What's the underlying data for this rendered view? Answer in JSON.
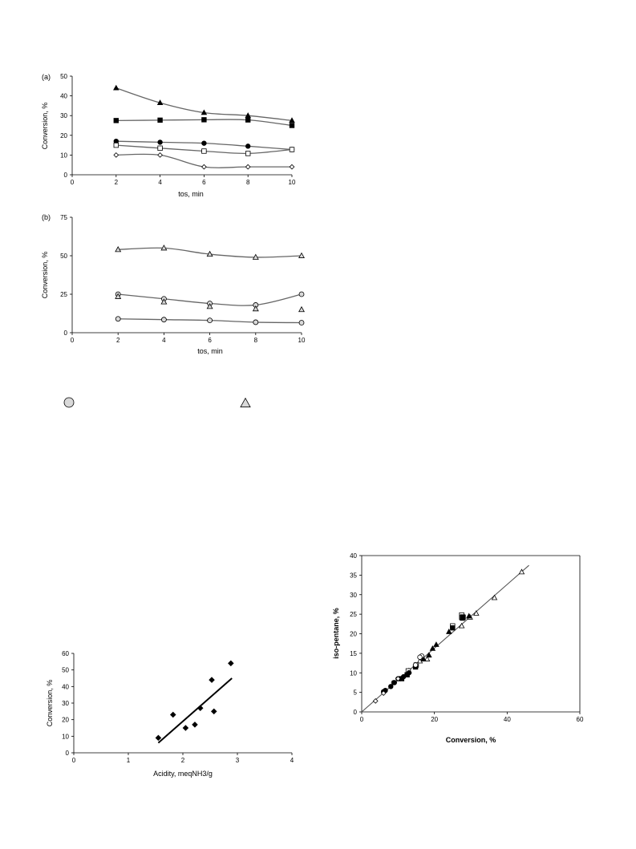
{
  "chart_data": [
    {
      "id": "a",
      "type": "line",
      "panel_label": "(a)",
      "xlabel": "tos, min",
      "ylabel": "Conversion, %",
      "xlim": [
        0,
        10
      ],
      "ylim": [
        0,
        50
      ],
      "x_ticks": [
        "0",
        "2",
        "4",
        "6",
        "8",
        "10"
      ],
      "y_ticks": [
        "0",
        "10",
        "20",
        "30",
        "40",
        "50"
      ],
      "series": [
        {
          "marker": "triangle",
          "fill": "#000000",
          "x": [
            2,
            4,
            6,
            8,
            10
          ],
          "values": [
            44,
            36.5,
            31.5,
            30,
            27.5
          ]
        },
        {
          "marker": "square",
          "fill": "#000000",
          "x": [
            2,
            4,
            6,
            8,
            10
          ],
          "values": [
            27.5,
            27.7,
            27.9,
            27.8,
            25
          ]
        },
        {
          "marker": "circle",
          "fill": "#000000",
          "x": [
            2,
            4,
            6,
            8,
            10
          ],
          "values": [
            17,
            16.5,
            16,
            14.5,
            12.8
          ]
        },
        {
          "marker": "square",
          "fill": "#ffffff",
          "x": [
            2,
            4,
            6,
            8,
            10
          ],
          "values": [
            15,
            13.5,
            12,
            10.8,
            12.8
          ]
        },
        {
          "marker": "diamond",
          "fill": "#ffffff",
          "x": [
            2,
            4,
            6,
            8,
            10
          ],
          "values": [
            10,
            10,
            4,
            4,
            4
          ]
        }
      ]
    },
    {
      "id": "b",
      "type": "line",
      "panel_label": "(b)",
      "xlabel": "tos, min",
      "ylabel": "Conversion, %",
      "xlim": [
        0,
        10
      ],
      "ylim": [
        0,
        75
      ],
      "x_ticks": [
        "0",
        "2",
        "4",
        "6",
        "8",
        "10"
      ],
      "y_ticks": [
        "0",
        "25",
        "50",
        "75"
      ],
      "series": [
        {
          "marker": "triangle",
          "fill": "#d9d9d9",
          "line": true,
          "x": [
            2,
            4,
            6,
            8,
            10
          ],
          "values": [
            54,
            55,
            51,
            49,
            50
          ]
        },
        {
          "marker": "circle",
          "fill": "#d9d9d9",
          "line": true,
          "x": [
            2,
            4,
            6,
            8,
            10
          ],
          "values": [
            25,
            22,
            19,
            18,
            25
          ]
        },
        {
          "marker": "triangle",
          "fill": "#d9d9d9",
          "line": false,
          "x": [
            2,
            4,
            6,
            8,
            10
          ],
          "values": [
            23.5,
            20,
            17,
            15.5,
            15
          ]
        },
        {
          "marker": "circle",
          "fill": "#d9d9d9",
          "line": true,
          "x": [
            2,
            4,
            6,
            8,
            10
          ],
          "values": [
            9,
            8.5,
            8,
            6.8,
            6.5
          ]
        }
      ]
    },
    {
      "id": "acidity",
      "type": "scatter",
      "xlabel": "Acidity, meqNH3/g",
      "ylabel": "Conversion, %",
      "xlim": [
        0,
        4
      ],
      "ylim": [
        0,
        60
      ],
      "x_ticks": [
        "0",
        "1",
        "2",
        "3",
        "4"
      ],
      "y_ticks": [
        "0",
        "10",
        "20",
        "30",
        "40",
        "50",
        "60"
      ],
      "points": {
        "x": [
          1.55,
          1.82,
          2.05,
          2.22,
          2.32,
          2.53,
          2.57,
          2.88
        ],
        "y": [
          9,
          23,
          15,
          17,
          27,
          44,
          25,
          54
        ]
      },
      "trendline": {
        "x": [
          1.55,
          2.9
        ],
        "y": [
          6,
          45
        ]
      }
    },
    {
      "id": "isopentane",
      "type": "scatter",
      "xlabel": "Conversion, %",
      "ylabel": "iso-pentane, %",
      "xlim": [
        0,
        60
      ],
      "ylim": [
        0,
        40
      ],
      "x_ticks": [
        "0",
        "20",
        "40",
        "60"
      ],
      "y_ticks": [
        "0",
        "5",
        "10",
        "15",
        "20",
        "25",
        "30",
        "35",
        "40"
      ],
      "trendline": {
        "x": [
          0,
          46
        ],
        "y": [
          0,
          37.5
        ]
      },
      "series": [
        {
          "marker": "triangle",
          "fill": "#ffffff",
          "x": [
            44,
            36.5,
            31.5,
            29.8,
            27.5,
            18,
            16
          ],
          "y": [
            35.8,
            29.2,
            25.2,
            24.2,
            22,
            13.5,
            13
          ]
        },
        {
          "marker": "triangle",
          "fill": "#000000",
          "x": [
            29.5,
            24,
            20.5,
            19.5,
            18.5,
            17,
            14.8,
            13
          ],
          "y": [
            24.5,
            20.5,
            17.2,
            16.2,
            14.5,
            13.5,
            12,
            10.5
          ]
        },
        {
          "marker": "square",
          "fill": "#ffffff",
          "x": [
            27.5,
            27.5,
            25,
            15,
            12.8
          ],
          "y": [
            24.8,
            24.2,
            22,
            12,
            10.5
          ]
        },
        {
          "marker": "square",
          "fill": "#000000",
          "x": [
            27.7,
            27.9,
            27.8,
            25,
            14.8,
            12.5,
            11
          ],
          "y": [
            24,
            24.2,
            24.3,
            21.5,
            11.5,
            9.5,
            8.5
          ]
        },
        {
          "marker": "circle",
          "fill": "#ffffff",
          "x": [
            16.5,
            16,
            14.8,
            10,
            8.8
          ],
          "y": [
            14.3,
            14,
            12,
            8.5,
            7.5
          ]
        },
        {
          "marker": "circle",
          "fill": "#000000",
          "x": [
            13,
            11.5,
            10.5,
            9,
            8,
            6.5,
            6
          ],
          "y": [
            10,
            9,
            8.5,
            7.5,
            6.5,
            5.5,
            5.2
          ]
        },
        {
          "marker": "diamond",
          "fill": "#ffffff",
          "x": [
            3.8,
            6,
            10
          ],
          "y": [
            2.8,
            4.8,
            8.5
          ]
        }
      ]
    }
  ],
  "legend_fragment": [
    {
      "marker": "circle",
      "fill": "#d9d9d9"
    },
    {
      "marker": "triangle",
      "fill": "#d9d9d9"
    }
  ]
}
